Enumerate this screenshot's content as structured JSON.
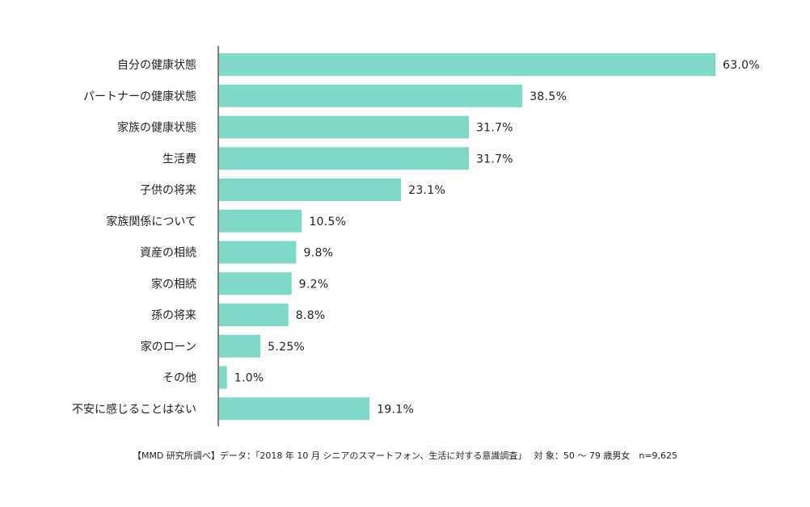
{
  "colors": {
    "bar": "#80d8c8",
    "axis": "#555555",
    "text": "#222222"
  },
  "chart_data": {
    "type": "bar",
    "orientation": "horizontal",
    "categories": [
      "自分の健康状態",
      "パートナーの健康状態",
      "家族の健康状態",
      "生活費",
      "子供の将来",
      "家族関係について",
      "資産の相続",
      "家の相続",
      "孫の将来",
      "家のローン",
      "その他",
      "不安に感じることはない"
    ],
    "values": [
      63.0,
      38.5,
      31.7,
      31.7,
      23.1,
      10.5,
      9.8,
      9.2,
      8.8,
      5.25,
      1.0,
      19.1
    ],
    "value_labels": [
      "63.0%",
      "38.5%",
      "31.7%",
      "31.7%",
      "23.1%",
      "10.5%",
      "9.8%",
      "9.2%",
      "8.8%",
      "5.25%",
      "1.0%",
      "19.1%"
    ],
    "unit": "%",
    "xlim": [
      0,
      63.0
    ],
    "grid": false,
    "legend": "none"
  },
  "footer": {
    "source": "【MMD 研究所調べ】データ：「2018 年 10 月 シニアのスマートフォン、生活に対する意識調査」　 対 象：50 〜 79 歳男女　n=9,625"
  }
}
